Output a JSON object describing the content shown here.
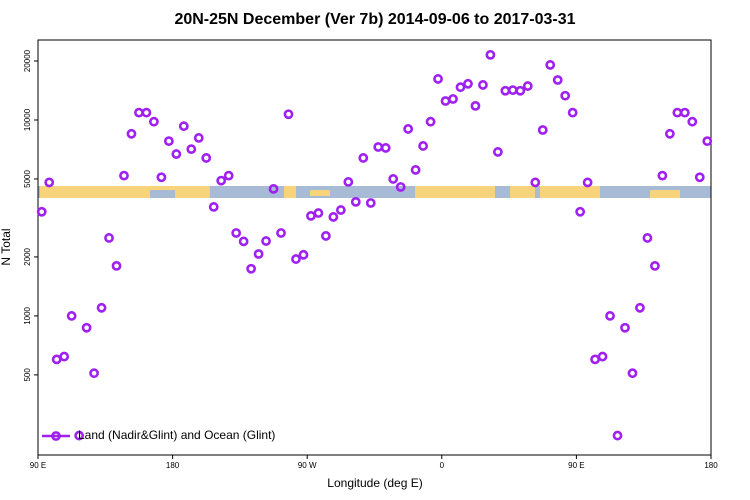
{
  "chart_data": {
    "type": "scatter",
    "title": "20N-25N December (Ver 7b)   2014-09-06 to 2017-03-31",
    "x_label": "Longitude (deg E)",
    "y_label": "N Total",
    "log_y": true,
    "legend": "bottomleft",
    "xlim": [
      -270,
      180
    ],
    "xticks": [
      {
        "value": -270,
        "label": "90 E"
      },
      {
        "value": -180,
        "label": "180"
      },
      {
        "value": -90,
        "label": "90 W"
      },
      0,
      {
        "value": 90,
        "label": "90 E"
      },
      180
    ],
    "ylim": [
      195,
      25600
    ],
    "yticks": [
      500,
      1000,
      2000,
      5000,
      10000,
      20000
    ],
    "series": [
      {
        "name": "Land (Nadir&Glint) and Ocean (Glint)",
        "color": "#a020f0",
        "x": [
          -267.5,
          -262.5,
          -257.5,
          -252.5,
          -247.5,
          -242.5,
          -237.5,
          -232.5,
          -227.5,
          -222.5,
          -217.5,
          -212.5,
          -207.5,
          -202.5,
          -197.5,
          -192.5,
          -187.5,
          -182.5,
          -177.5,
          -172.5,
          -167.5,
          -162.5,
          -157.5,
          -152.5,
          -147.5,
          -142.5,
          -137.5,
          -132.5,
          -127.5,
          -122.5,
          -117.5,
          -112.5,
          -107.5,
          -102.5,
          -97.5,
          -92.5,
          -87.5,
          -82.5,
          -77.5,
          -72.5,
          -67.5,
          -62.5,
          -57.5,
          -52.5,
          -47.5,
          -42.5,
          -37.5,
          -32.5,
          -27.5,
          -22.5,
          -17.5,
          -12.5,
          -7.5,
          -2.5,
          2.5,
          7.5,
          12.5,
          17.5,
          22.5,
          27.5,
          32.5,
          37.5,
          42.5,
          47.5,
          52.5,
          57.5,
          62.5,
          67.5,
          72.5,
          77.5,
          82.5,
          87.5,
          92.5,
          97.5,
          102.5,
          107.5,
          112.5,
          117.5,
          122.5,
          127.5,
          132.5,
          137.5,
          142.5,
          147.5,
          152.5,
          157.5,
          162.5,
          167.5,
          172.5,
          177.5
        ],
        "values": [
          3400,
          4800,
          600,
          620,
          1000,
          245,
          870,
          510,
          1100,
          2500,
          1800,
          5200,
          8500,
          10900,
          10900,
          9800,
          5100,
          7800,
          6700,
          9300,
          7100,
          8100,
          6400,
          3600,
          4900,
          5200,
          2650,
          2400,
          1740,
          2070,
          2410,
          4450,
          2650,
          10700,
          1950,
          2050,
          3240,
          3350,
          2560,
          3200,
          3470,
          4830,
          3820,
          6400,
          3770,
          7280,
          7200,
          5000,
          4550,
          9000,
          5560,
          7370,
          9800,
          16200,
          12500,
          12800,
          14700,
          15300,
          11800,
          15100,
          21500,
          6870,
          14100,
          14200,
          14100,
          14900,
          4800,
          8890,
          19100,
          16000,
          13300,
          10900,
          3400,
          4800,
          600,
          620,
          1000,
          245,
          870,
          510,
          1100,
          2500,
          1800,
          5200,
          8500,
          10900,
          10900,
          9800,
          5100,
          7800
        ]
      }
    ]
  }
}
